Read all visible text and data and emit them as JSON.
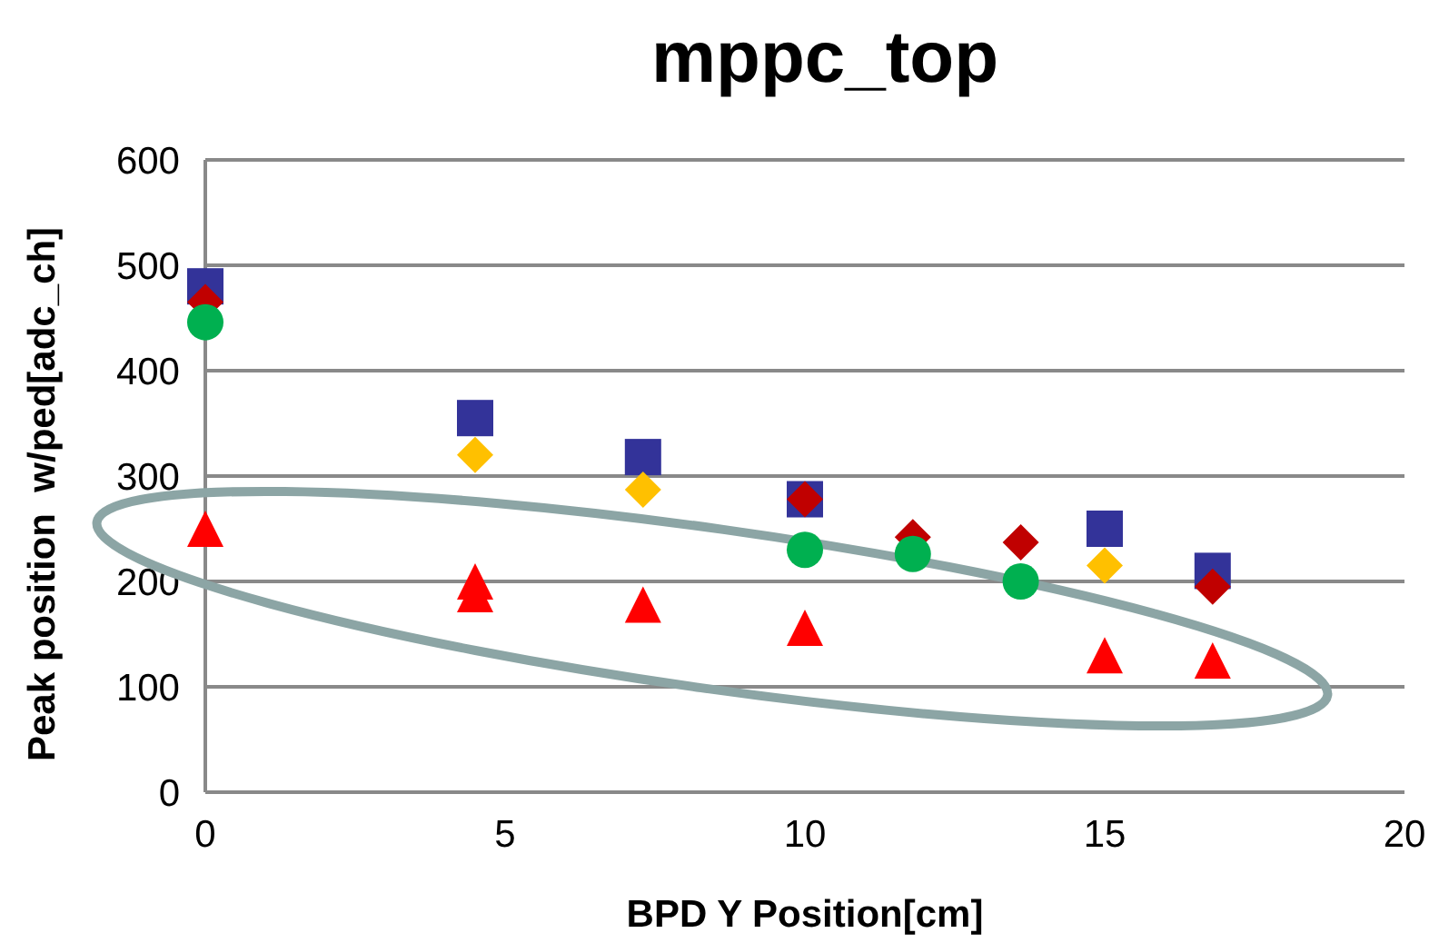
{
  "chart_data": {
    "type": "scatter",
    "title": "mppc_top",
    "xlabel": "BPD Y Position[cm]",
    "ylabel": "Peak position  w/ped[adc_ch]",
    "xlim": [
      0,
      20
    ],
    "xticks": [
      0,
      5,
      10,
      15,
      20
    ],
    "ylim": [
      0,
      600
    ],
    "yticks": [
      0,
      100,
      200,
      300,
      400,
      500,
      600
    ],
    "grid": "y",
    "series": [
      {
        "color": "#333399",
        "marker": "square",
        "x": [
          0,
          4.5,
          7.3,
          10,
          15,
          16.8
        ],
        "values": [
          480,
          355,
          318,
          278,
          250,
          210
        ]
      },
      {
        "color": "#ffc000",
        "marker": "diamond",
        "x": [
          4.5,
          7.3,
          15
        ],
        "values": [
          320,
          287,
          215
        ]
      },
      {
        "color": "#c00000",
        "marker": "diamond",
        "x": [
          0,
          10,
          11.8,
          13.6,
          16.8
        ],
        "values": [
          465,
          278,
          242,
          237,
          195
        ]
      },
      {
        "color": "#00b050",
        "marker": "circle",
        "x": [
          0,
          10,
          11.8,
          13.6
        ],
        "values": [
          446,
          230,
          226,
          200
        ]
      },
      {
        "color": "#ff0000",
        "marker": "triangle",
        "x": [
          0,
          4.5,
          4.5,
          7.3,
          10,
          15,
          16.8
        ],
        "values": [
          250,
          200,
          188,
          178,
          156,
          130,
          125
        ]
      }
    ]
  }
}
